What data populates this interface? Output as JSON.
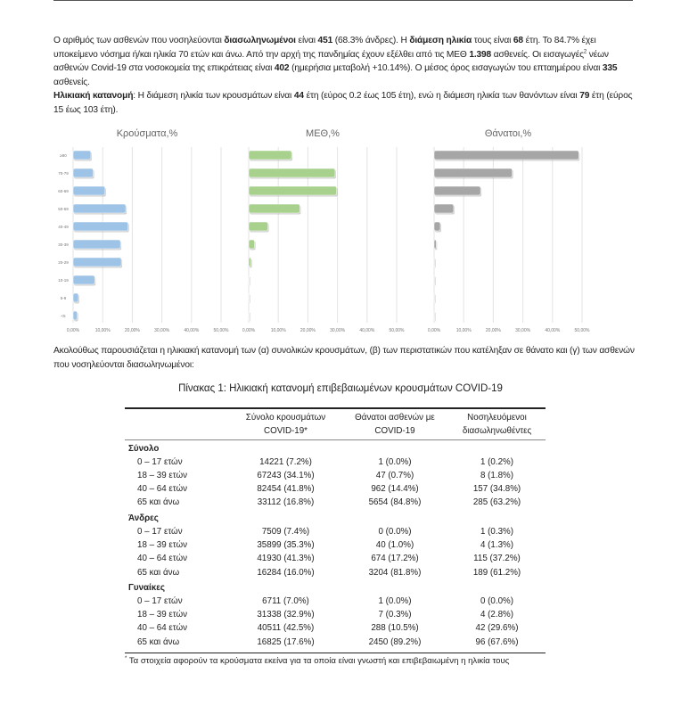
{
  "paragraph1": {
    "t1": "Ο αριθμός των ασθενών που νοσηλεύονται ",
    "b1": "διασωληνωμένοι",
    "t2": " είναι ",
    "b2": "451",
    "t3": " (68.3% άνδρες).  Η ",
    "b3": "διάμεση ηλικία",
    "t4": " τους είναι ",
    "b4": "68",
    "t5": " έτη.  Το 84.7% έχει υποκείμενο νόσημα ή/και ηλικία 70 ετών και άνω.  Από την αρχή της πανδημίας έχουν εξέλθει από τις ΜΕΘ ",
    "b5": "1.398",
    "t6": " ασθενείς.  Οι εισαγωγές",
    "sup": "2",
    "t7": " νέων ασθενών Covid-19 στα νοσοκομεία της επικράτειας είναι ",
    "b6": "402",
    "t8": " (ημερήσια μεταβολή +10.14%).  Ο μέσος όρος εισαγωγών του επταημέρου είναι ",
    "b7": "335",
    "t9": " ασθενείς."
  },
  "paragraph2": {
    "b1": "Ηλικιακή κατανομή",
    "t1": ": Η διάμεση ηλικία των κρουσμάτων είναι ",
    "b2": "44",
    "t2": " έτη (εύρος 0.2 έως 105 έτη), ενώ η διάμεση ηλικία των θανόντων είναι ",
    "b3": "79",
    "t3": " έτη (εύρος 15 έως 103 έτη)."
  },
  "chart_data": [
    {
      "type": "bar",
      "orientation": "horizontal",
      "title": "Κρούσματα,%",
      "categories": [
        "≥80",
        "70-79",
        "60-69",
        "50-59",
        "40-49",
        "30-39",
        "20-29",
        "10-19",
        "5-9",
        "<5"
      ],
      "values": [
        6.0,
        6.8,
        10.8,
        17.8,
        18.6,
        16.0,
        16.3,
        7.3,
        1.8,
        1.4
      ],
      "xlim": [
        0,
        50
      ],
      "xticks": [
        "0,00%",
        "10,00%",
        "20,00%",
        "30,00%",
        "40,00%",
        "50,00%"
      ],
      "grid": true,
      "color": "#9dc3e6"
    },
    {
      "type": "bar",
      "orientation": "horizontal",
      "title": "ΜΕΘ,%",
      "categories": [
        "≥80",
        "70-79",
        "60-69",
        "50-59",
        "40-49",
        "30-39",
        "20-29",
        "10-19",
        "5-9",
        "<5"
      ],
      "values": [
        14.5,
        29.2,
        29.7,
        17.3,
        6.5,
        2.0,
        0.8,
        0.1,
        0,
        0
      ],
      "xlim": [
        0,
        50
      ],
      "xticks": [
        "0,00%",
        "10,00%",
        "20,00%",
        "30,00%",
        "40,00%",
        "50,00%"
      ],
      "grid": true,
      "color": "#a9d18e"
    },
    {
      "type": "bar",
      "orientation": "horizontal",
      "title": "Θάνατοι,%",
      "categories": [
        "≥80",
        "70-79",
        "60-69",
        "50-59",
        "40-49",
        "30-39",
        "20-29",
        "10-19",
        "5-9",
        "<5"
      ],
      "values": [
        48.9,
        26.4,
        15.7,
        6.6,
        2.1,
        0.7,
        0.2,
        0.2,
        0,
        0
      ],
      "xlim": [
        0,
        50
      ],
      "xticks": [
        "0,00%",
        "10,00%",
        "20,00%",
        "30,00%",
        "40,00%",
        "50,00%"
      ],
      "grid": true,
      "color": "#a6a6a6"
    }
  ],
  "paragraph3": "Ακολούθως παρουσιάζεται η ηλικιακή κατανομή των (α) συνολικών κρουσμάτων, (β) των περιστατικών που κατέληξαν σε θάνατο και (γ) των ασθενών που νοσηλεύονται διασωληνωμένοι:",
  "table": {
    "caption": "Πίνακας 1: Ηλικιακή κατανομή επιβεβαιωμένων κρουσμάτων COVID-19",
    "headers": [
      "",
      "Σύνολο κρουσμάτων COVID-19*",
      "Θάνατοι ασθενών με COVID-19",
      "Νοσηλευόμενοι διασωληνωθέντες"
    ],
    "header_lines": [
      [
        "Σύνολο κρουσμάτων",
        "COVID-19*"
      ],
      [
        "Θάνατοι ασθενών με",
        "COVID-19"
      ],
      [
        "Νοσηλευόμενοι",
        "διασωληνωθέντες"
      ]
    ],
    "sections": [
      {
        "label": "Σύνολο",
        "rows": [
          [
            "0 – 17 ετών",
            "14221 (7.2%)",
            "1 (0.0%)",
            "1 (0.2%)"
          ],
          [
            "18 – 39 ετών",
            "67243 (34.1%)",
            "47 (0.7%)",
            "8 (1.8%)"
          ],
          [
            "40 – 64 ετών",
            "82454 (41.8%)",
            "962 (14.4%)",
            "157 (34.8%)"
          ],
          [
            "65 και άνω",
            "33112 (16.8%)",
            "5654 (84.8%)",
            "285 (63.2%)"
          ]
        ]
      },
      {
        "label": "Άνδρες",
        "rows": [
          [
            "0 – 17 ετών",
            "7509 (7.4%)",
            "0 (0.0%)",
            "1 (0.3%)"
          ],
          [
            "18 – 39 ετών",
            "35899 (35.3%)",
            "40 (1.0%)",
            "4 (1.3%)"
          ],
          [
            "40 – 64 ετών",
            "41930 (41.3%)",
            "674 (17.2%)",
            "115 (37.2%)"
          ],
          [
            "65 και άνω",
            "16284 (16.0%)",
            "3204 (81.8%)",
            "189 (61.2%)"
          ]
        ]
      },
      {
        "label": "Γυναίκες",
        "rows": [
          [
            "0 – 17 ετών",
            "6711 (7.0%)",
            "1 (0.0%)",
            "0 (0.0%)"
          ],
          [
            "18 – 39 ετών",
            "31338 (32.9%)",
            "7 (0.3%)",
            "4 (2.8%)"
          ],
          [
            "40 – 64 ετών",
            "40511 (42.5%)",
            "288 (10.5%)",
            "42 (29.6%)"
          ],
          [
            "65 και άνω",
            "16825 (17.6%)",
            "2450 (89.2%)",
            "96 (67.6%)"
          ]
        ]
      }
    ],
    "footnote_mark": "*",
    "footnote": "Τα στοιχεία αφορούν τα κρούσματα εκείνα για τα οποία είναι γνωστή και επιβεβαιωμένη η ηλικία τους"
  }
}
